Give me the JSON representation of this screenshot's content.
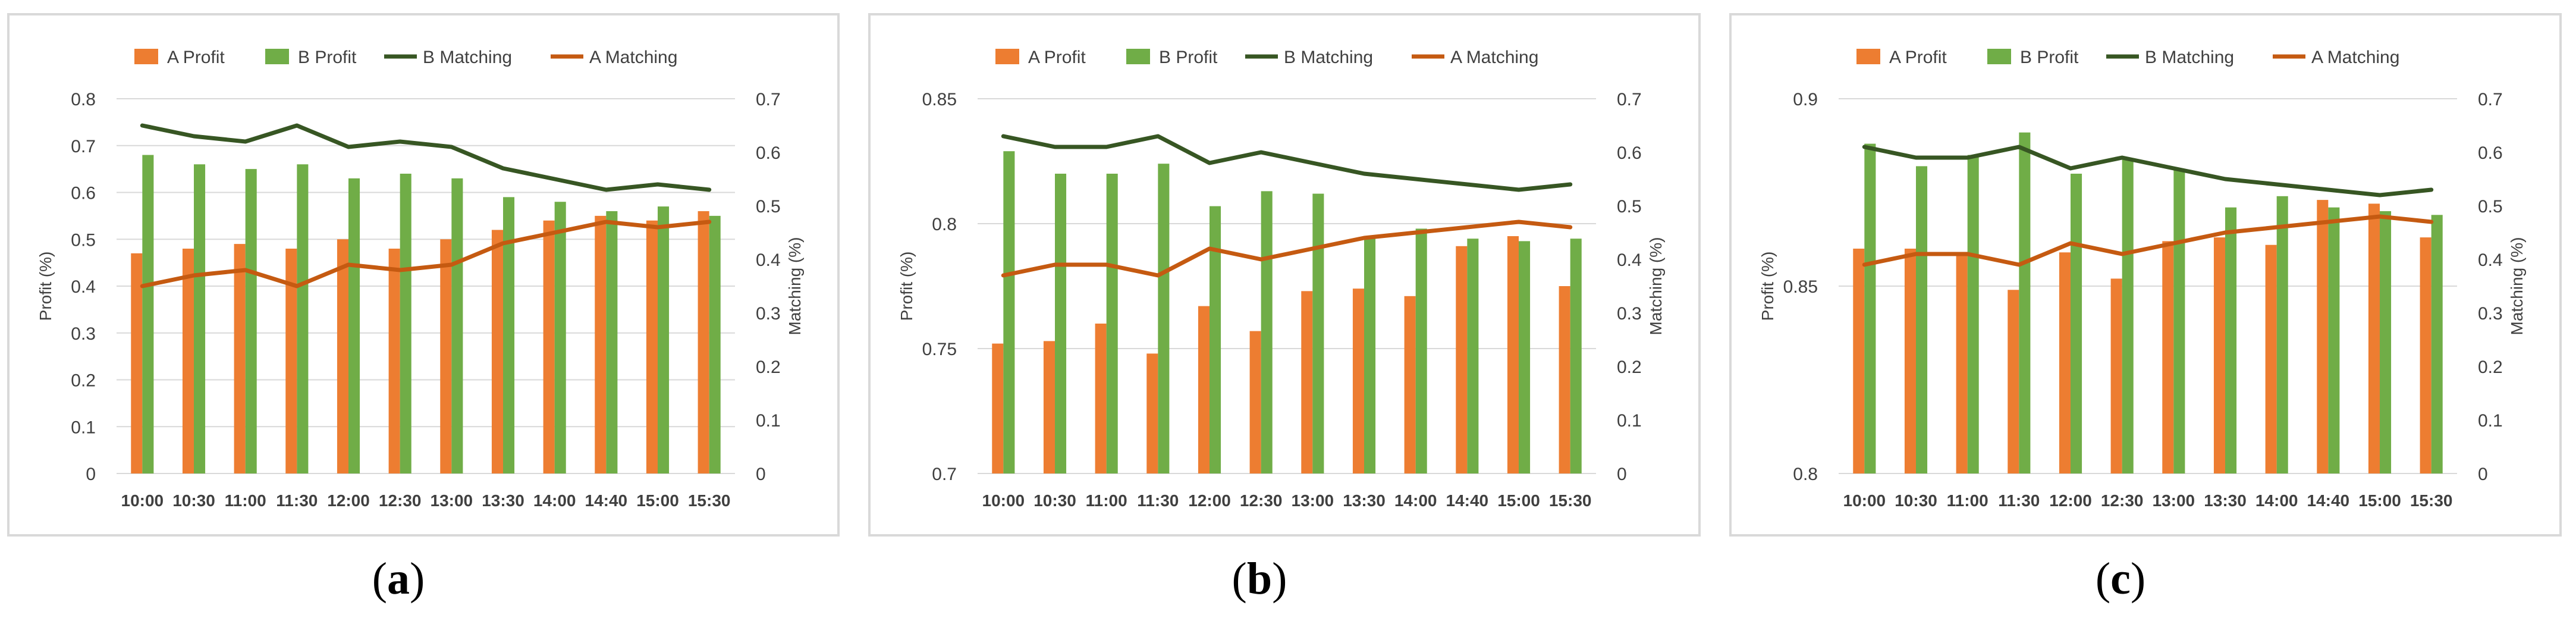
{
  "colors": {
    "a_profit": "#ED7D31",
    "b_profit": "#70AD47",
    "b_matching": "#375623",
    "a_matching": "#C55A11"
  },
  "chart_data": [
    {
      "type": "bar+line",
      "panel_label": "a",
      "categories": [
        "10:00",
        "10:30",
        "11:00",
        "11:30",
        "12:00",
        "12:30",
        "13:00",
        "13:30",
        "14:00",
        "14:40",
        "15:00",
        "15:30"
      ],
      "legend": [
        "A Profit",
        "B Profit",
        "B Matching",
        "A Matching"
      ],
      "ylabel": "Profit (%)",
      "y2label": "Matching (%)",
      "ylim": [
        0,
        0.8
      ],
      "yticks": [
        "0",
        "0.1",
        "0.2",
        "0.3",
        "0.4",
        "0.5",
        "0.6",
        "0.7",
        "0.8"
      ],
      "y2lim": [
        0,
        0.7
      ],
      "y2ticks": [
        "0",
        "0.1",
        "0.2",
        "0.3",
        "0.4",
        "0.5",
        "0.6",
        "0.7"
      ],
      "series": [
        {
          "name": "A Profit",
          "kind": "bar",
          "axis": "left",
          "values": [
            0.47,
            0.48,
            0.49,
            0.48,
            0.5,
            0.48,
            0.5,
            0.52,
            0.54,
            0.55,
            0.54,
            0.56
          ]
        },
        {
          "name": "B Profit",
          "kind": "bar",
          "axis": "left",
          "values": [
            0.68,
            0.66,
            0.65,
            0.66,
            0.63,
            0.64,
            0.63,
            0.59,
            0.58,
            0.56,
            0.57,
            0.55
          ]
        },
        {
          "name": "B Matching",
          "kind": "line",
          "axis": "right",
          "values": [
            0.65,
            0.63,
            0.62,
            0.65,
            0.61,
            0.62,
            0.61,
            0.57,
            0.55,
            0.53,
            0.54,
            0.53
          ]
        },
        {
          "name": "A Matching",
          "kind": "line",
          "axis": "right",
          "values": [
            0.35,
            0.37,
            0.38,
            0.35,
            0.39,
            0.38,
            0.39,
            0.43,
            0.45,
            0.47,
            0.46,
            0.47
          ]
        }
      ]
    },
    {
      "type": "bar+line",
      "panel_label": "b",
      "categories": [
        "10:00",
        "10:30",
        "11:00",
        "11:30",
        "12:00",
        "12:30",
        "13:00",
        "13:30",
        "14:00",
        "14:40",
        "15:00",
        "15:30"
      ],
      "legend": [
        "A Profit",
        "B Profit",
        "B Matching",
        "A Matching"
      ],
      "ylabel": "Profit (%)",
      "y2label": "Matching (%)",
      "ylim": [
        0.7,
        0.85
      ],
      "yticks": [
        "0.7",
        "0.75",
        "0.8",
        "0.85"
      ],
      "y2lim": [
        0,
        0.7
      ],
      "y2ticks": [
        "0",
        "0.1",
        "0.2",
        "0.3",
        "0.4",
        "0.5",
        "0.6",
        "0.7"
      ],
      "series": [
        {
          "name": "A Profit",
          "kind": "bar",
          "axis": "left",
          "values": [
            0.752,
            0.753,
            0.76,
            0.748,
            0.767,
            0.757,
            0.773,
            0.774,
            0.771,
            0.791,
            0.795,
            0.775
          ]
        },
        {
          "name": "B Profit",
          "kind": "bar",
          "axis": "left",
          "values": [
            0.829,
            0.82,
            0.82,
            0.824,
            0.807,
            0.813,
            0.812,
            0.795,
            0.798,
            0.794,
            0.793,
            0.794
          ]
        },
        {
          "name": "B Matching",
          "kind": "line",
          "axis": "right",
          "values": [
            0.63,
            0.61,
            0.61,
            0.63,
            0.58,
            0.6,
            0.58,
            0.56,
            0.55,
            0.54,
            0.53,
            0.54
          ]
        },
        {
          "name": "A Matching",
          "kind": "line",
          "axis": "right",
          "values": [
            0.37,
            0.39,
            0.39,
            0.37,
            0.42,
            0.4,
            0.42,
            0.44,
            0.45,
            0.46,
            0.47,
            0.46
          ]
        }
      ]
    },
    {
      "type": "bar+line",
      "panel_label": "c",
      "categories": [
        "10:00",
        "10:30",
        "11:00",
        "11:30",
        "12:00",
        "12:30",
        "13:00",
        "13:30",
        "14:00",
        "14:40",
        "15:00",
        "15:30"
      ],
      "legend": [
        "A Profit",
        "B Profit",
        "B Matching",
        "A Matching"
      ],
      "ylabel": "Profit (%)",
      "y2label": "Matching (%)",
      "ylim": [
        0.8,
        0.9
      ],
      "yticks": [
        "0.8",
        "0.85",
        "0.9"
      ],
      "y2lim": [
        0,
        0.7
      ],
      "y2ticks": [
        "0",
        "0.1",
        "0.2",
        "0.3",
        "0.4",
        "0.5",
        "0.6",
        "0.7"
      ],
      "series": [
        {
          "name": "A Profit",
          "kind": "bar",
          "axis": "left",
          "values": [
            0.86,
            0.86,
            0.859,
            0.849,
            0.859,
            0.852,
            0.862,
            0.863,
            0.861,
            0.873,
            0.872,
            0.863
          ]
        },
        {
          "name": "B Profit",
          "kind": "bar",
          "axis": "left",
          "values": [
            0.888,
            0.882,
            0.885,
            0.891,
            0.88,
            0.884,
            0.881,
            0.871,
            0.874,
            0.871,
            0.87,
            0.869
          ]
        },
        {
          "name": "B Matching",
          "kind": "line",
          "axis": "right",
          "values": [
            0.61,
            0.59,
            0.59,
            0.61,
            0.57,
            0.59,
            0.57,
            0.55,
            0.54,
            0.53,
            0.52,
            0.53
          ]
        },
        {
          "name": "A Matching",
          "kind": "line",
          "axis": "right",
          "values": [
            0.39,
            0.41,
            0.41,
            0.39,
            0.43,
            0.41,
            0.43,
            0.45,
            0.46,
            0.47,
            0.48,
            0.47
          ]
        }
      ]
    }
  ]
}
